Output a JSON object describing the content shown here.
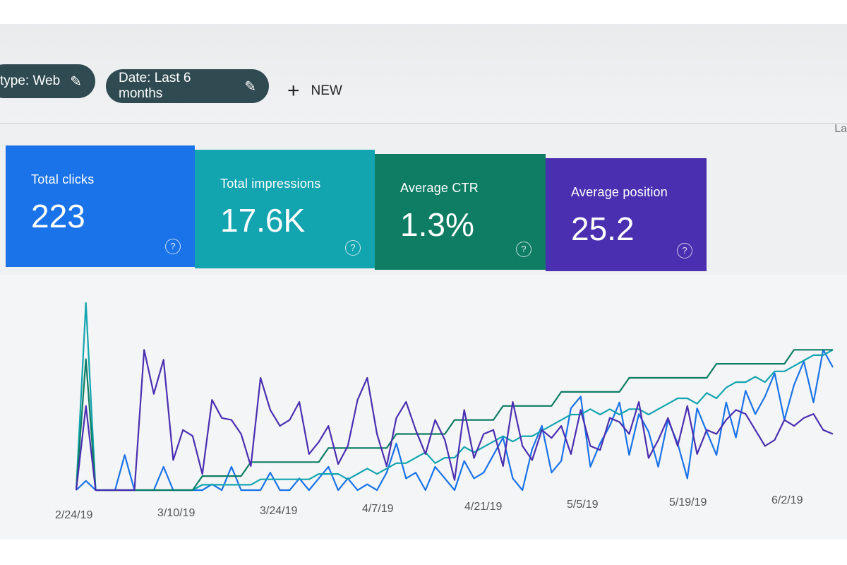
{
  "filters": {
    "type_chip": "type: Web",
    "date_chip": "Date: Last 6 months",
    "new_label": "NEW",
    "edge_text": "La"
  },
  "metrics": [
    {
      "label": "Total clicks",
      "value": "223",
      "color": "#1a73e8"
    },
    {
      "label": "Total impressions",
      "value": "17.6K",
      "color": "#12a4af"
    },
    {
      "label": "Average CTR",
      "value": "1.3%",
      "color": "#0e7d64"
    },
    {
      "label": "Average position",
      "value": "25.2",
      "color": "#4a2fb0"
    }
  ],
  "icons": {
    "help": "help-circle-icon",
    "edit": "pencil-icon",
    "add": "plus-icon"
  },
  "chart_data": {
    "type": "line",
    "x_ticks": [
      "2/24/19",
      "3/10/19",
      "3/24/19",
      "4/7/19",
      "4/21/19",
      "5/5/19",
      "5/19/19",
      "6/2/19"
    ],
    "series": [
      {
        "color": "#1a73e8",
        "values": [
          0,
          10,
          0,
          0,
          0,
          6,
          0,
          0,
          0,
          4,
          0,
          0,
          0,
          0,
          1,
          0,
          4,
          0,
          0,
          0,
          3,
          0,
          0,
          2,
          0,
          2,
          4,
          0,
          2,
          0,
          1,
          0,
          3,
          8,
          2,
          3,
          0,
          4,
          2,
          0,
          5,
          2,
          3,
          6,
          9,
          2,
          0,
          7,
          11,
          3,
          5,
          14,
          16,
          4,
          8,
          11,
          15,
          6,
          13,
          10,
          4,
          12,
          8,
          2,
          14,
          10,
          6,
          15,
          9,
          17,
          13,
          16,
          20,
          12,
          18,
          22,
          15,
          24,
          21
        ]
      },
      {
        "color": "#12a4af",
        "values": [
          0,
          200,
          0,
          0,
          0,
          0,
          0,
          0,
          0,
          0,
          0,
          0,
          0,
          1,
          1,
          1,
          1,
          1,
          1,
          2,
          2,
          2,
          2,
          2,
          2,
          3,
          3,
          3,
          2,
          3,
          4,
          3,
          4,
          5,
          5,
          6,
          7,
          5,
          6,
          6,
          8,
          7,
          8,
          9,
          10,
          9,
          10,
          10,
          11,
          12,
          13,
          14,
          14,
          15,
          14,
          15,
          14,
          15,
          15,
          14,
          15,
          16,
          17,
          17,
          16,
          18,
          17,
          19,
          20,
          20,
          21,
          20,
          22,
          22,
          23,
          24,
          25,
          25,
          26
        ]
      },
      {
        "color": "#0e7d64",
        "values": [
          0,
          140,
          0,
          0,
          0,
          0,
          0,
          0,
          0,
          0,
          0,
          0,
          0,
          1,
          1,
          1,
          1,
          1,
          2,
          2,
          2,
          2,
          2,
          2,
          2,
          2,
          3,
          3,
          3,
          3,
          3,
          3,
          3,
          4,
          4,
          4,
          4,
          4,
          4,
          5,
          5,
          5,
          5,
          5,
          6,
          6,
          6,
          6,
          6,
          6,
          7,
          7,
          7,
          7,
          7,
          7,
          7,
          8,
          8,
          8,
          8,
          8,
          8,
          8,
          8,
          8,
          9,
          9,
          9,
          9,
          9,
          9,
          9,
          9,
          10,
          10,
          10,
          10,
          10
        ]
      },
      {
        "color": "#4a2fb0",
        "values": [
          0,
          90,
          0,
          0,
          0,
          0,
          0,
          70,
          48,
          65,
          15,
          30,
          27,
          8,
          45,
          36,
          35,
          28,
          12,
          56,
          40,
          32,
          35,
          44,
          18,
          24,
          32,
          13,
          22,
          45,
          56,
          28,
          12,
          36,
          44,
          30,
          18,
          35,
          25,
          5,
          40,
          16,
          28,
          30,
          12,
          44,
          22,
          15,
          30,
          26,
          32,
          18,
          40,
          22,
          20,
          36,
          34,
          28,
          44,
          16,
          25,
          36,
          22,
          42,
          18,
          30,
          28,
          35,
          40,
          38,
          30,
          22,
          25,
          35,
          32,
          36,
          38,
          30,
          28
        ]
      }
    ],
    "x_axis": "dates Feb 2019 – Jun 2019",
    "grid": false,
    "legend": "none"
  }
}
